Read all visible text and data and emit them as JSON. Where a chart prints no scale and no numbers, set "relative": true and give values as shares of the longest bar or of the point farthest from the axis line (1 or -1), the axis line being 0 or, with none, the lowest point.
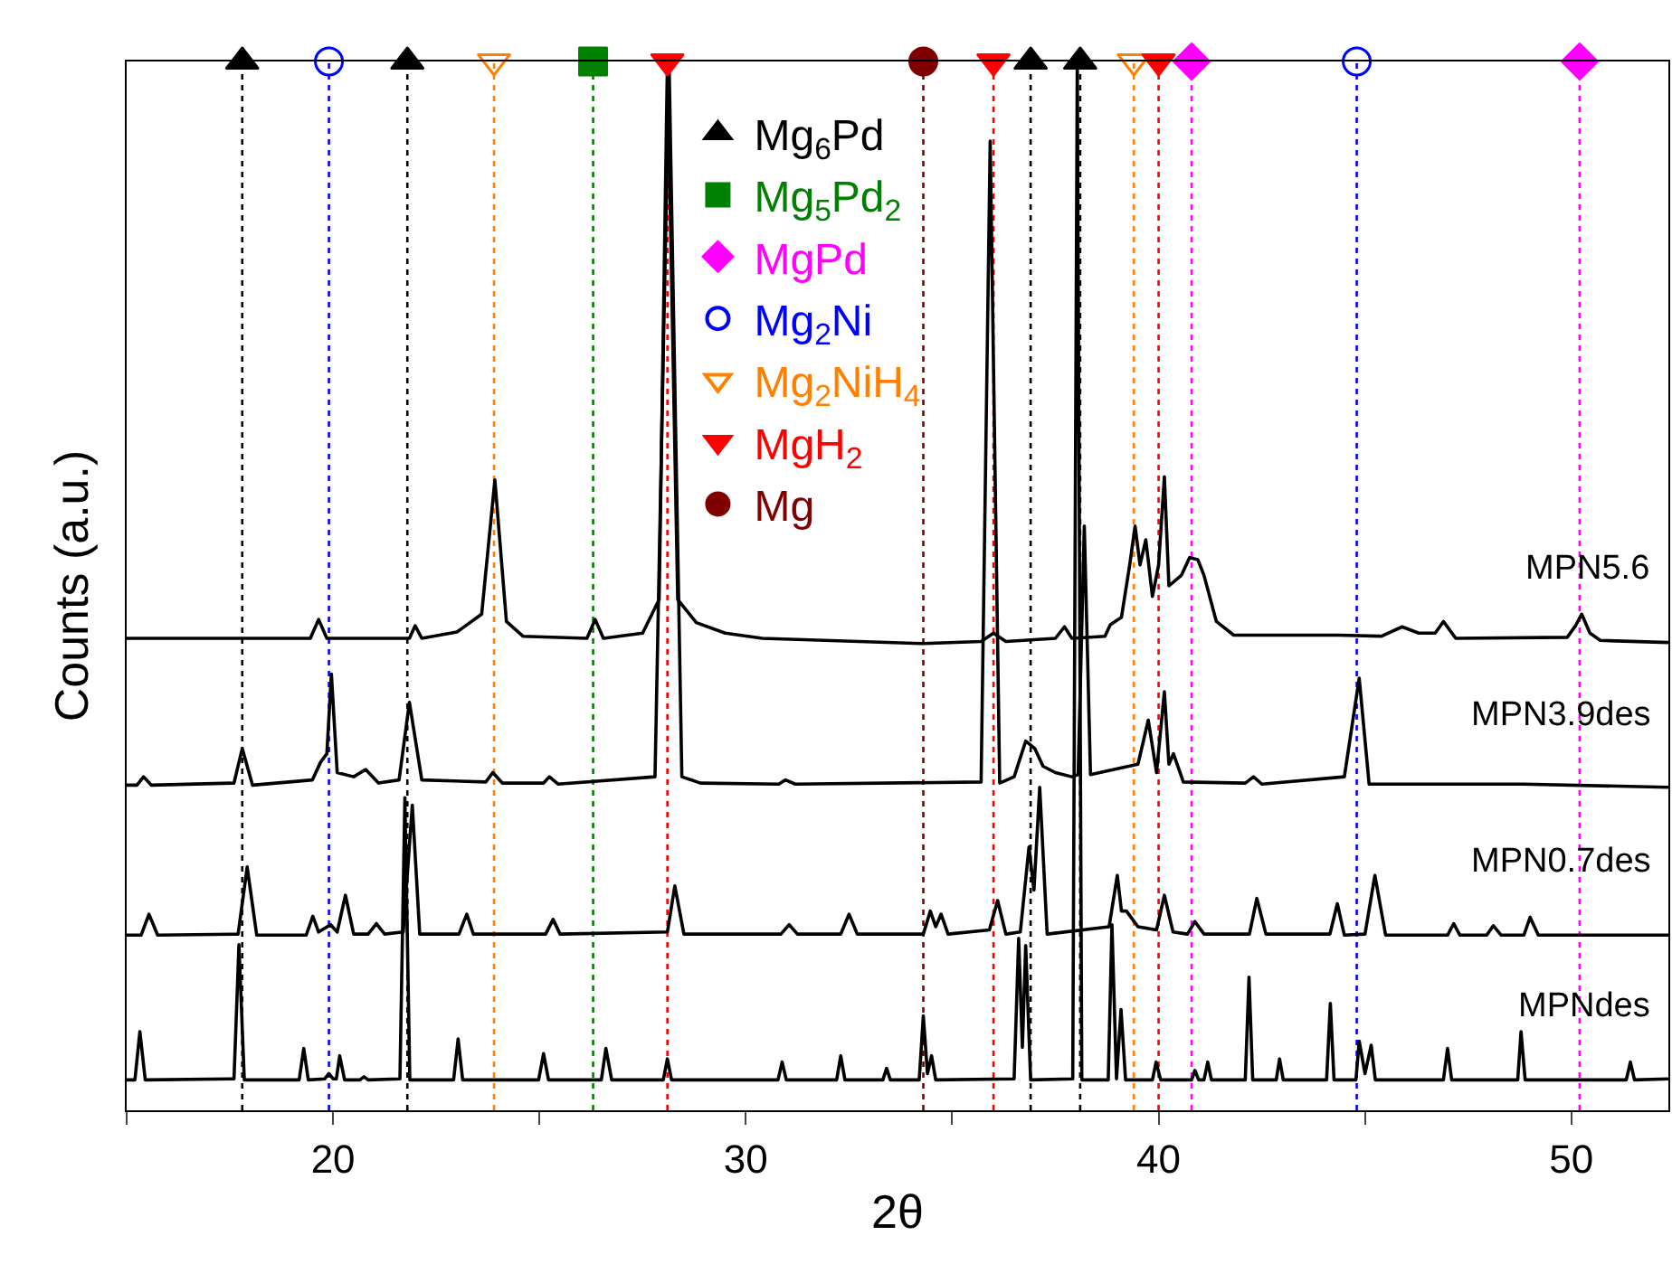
{
  "chart_data": {
    "type": "line",
    "relative": true,
    "xlabel": "2θ",
    "ylabel": "Counts (a.u.)",
    "xlim": [
      15,
      52.35
    ],
    "xticks": [
      {
        "value": 15,
        "label": null
      },
      20,
      {
        "value": 25,
        "label": null
      },
      30,
      {
        "value": 35,
        "label": null
      },
      40,
      {
        "value": 45,
        "label": null
      },
      50
    ],
    "tick_labels": "x",
    "grid": false,
    "legend": "top",
    "marker": "none",
    "line_style": "solid",
    "series": [
      {
        "name": "MPN5.6",
        "color": "#000000",
        "x": [
          15.0,
          19.45,
          19.65,
          19.85,
          21.85,
          21.99,
          22.15,
          23.0,
          23.6,
          23.92,
          24.2,
          24.6,
          26.15,
          26.35,
          26.55,
          27.5,
          27.9,
          28.1,
          28.35,
          28.8,
          29.5,
          30.4,
          34.3,
          35.7,
          36.0,
          36.3,
          37.5,
          37.72,
          37.9,
          38.7,
          38.83,
          39.1,
          39.3,
          39.43,
          39.55,
          39.69,
          39.85,
          40.0,
          40.14,
          40.25,
          40.55,
          40.75,
          40.95,
          41.1,
          41.4,
          41.82,
          44.38,
          45.4,
          45.9,
          46.3,
          46.7,
          46.9,
          47.2,
          49.9,
          50.1,
          50.25,
          50.45,
          50.7,
          52.35
        ],
        "values": [
          0.45,
          0.45,
          0.468,
          0.45,
          0.45,
          0.462,
          0.45,
          0.456,
          0.473,
          0.601,
          0.466,
          0.452,
          0.45,
          0.468,
          0.45,
          0.455,
          0.487,
          1.0,
          0.487,
          0.465,
          0.455,
          0.45,
          0.445,
          0.447,
          0.455,
          0.447,
          0.45,
          0.461,
          0.45,
          0.452,
          0.463,
          0.47,
          0.52,
          0.557,
          0.52,
          0.544,
          0.49,
          0.52,
          0.604,
          0.5,
          0.51,
          0.527,
          0.525,
          0.51,
          0.466,
          0.453,
          0.453,
          0.452,
          0.461,
          0.455,
          0.455,
          0.466,
          0.45,
          0.451,
          0.462,
          0.473,
          0.455,
          0.448,
          0.446
        ]
      },
      {
        "name": "MPN3.9des",
        "color": "#000000",
        "x": [
          15.0,
          15.25,
          15.41,
          15.6,
          17.6,
          17.8,
          18.05,
          19.5,
          19.7,
          19.85,
          19.96,
          20.1,
          20.5,
          20.79,
          21.1,
          21.6,
          21.85,
          22.15,
          23.7,
          23.87,
          24.1,
          25.1,
          25.24,
          25.45,
          27.8,
          28.14,
          28.45,
          28.9,
          30.8,
          30.96,
          31.2,
          35.7,
          35.92,
          36.15,
          36.5,
          36.78,
          37.0,
          37.2,
          37.5,
          37.9,
          38.05,
          38.2,
          38.35,
          38.92,
          39.5,
          39.75,
          39.95,
          40.14,
          40.25,
          40.36,
          40.6,
          42.1,
          42.3,
          42.5,
          44.5,
          44.86,
          45.1,
          48.83,
          52.35
        ],
        "values": [
          0.31,
          0.31,
          0.318,
          0.31,
          0.312,
          0.345,
          0.31,
          0.315,
          0.332,
          0.34,
          0.416,
          0.322,
          0.318,
          0.325,
          0.312,
          0.315,
          0.389,
          0.315,
          0.313,
          0.322,
          0.312,
          0.312,
          0.318,
          0.311,
          0.318,
          1.0,
          0.318,
          0.312,
          0.311,
          0.315,
          0.311,
          0.313,
          0.924,
          0.312,
          0.318,
          0.352,
          0.345,
          0.328,
          0.322,
          0.318,
          0.32,
          0.557,
          0.32,
          0.325,
          0.33,
          0.372,
          0.322,
          0.399,
          0.33,
          0.34,
          0.313,
          0.312,
          0.318,
          0.311,
          0.318,
          0.412,
          0.311,
          0.311,
          0.308
        ]
      },
      {
        "name": "MPN0.7des",
        "color": "#000000",
        "x": [
          15.0,
          15.35,
          15.54,
          15.75,
          17.7,
          17.92,
          18.15,
          19.35,
          19.51,
          19.65,
          19.94,
          20.1,
          20.3,
          20.5,
          20.85,
          21.05,
          21.25,
          21.7,
          21.92,
          22.1,
          23.05,
          23.24,
          23.4,
          25.15,
          25.33,
          25.5,
          28.1,
          28.28,
          28.5,
          30.85,
          31.05,
          31.25,
          32.3,
          32.5,
          32.7,
          34.3,
          34.47,
          34.6,
          34.73,
          34.9,
          35.9,
          36.1,
          36.3,
          36.65,
          36.86,
          36.98,
          37.12,
          37.3,
          38.8,
          39.0,
          39.1,
          39.22,
          39.5,
          39.95,
          40.14,
          40.35,
          40.7,
          40.88,
          41.1,
          42.2,
          42.38,
          42.6,
          44.15,
          44.33,
          44.5,
          45.0,
          45.24,
          45.5,
          47.0,
          47.15,
          47.3,
          47.95,
          48.11,
          48.3,
          48.85,
          49.0,
          49.2,
          52.35
        ],
        "values": [
          0.167,
          0.167,
          0.187,
          0.167,
          0.168,
          0.232,
          0.167,
          0.167,
          0.185,
          0.17,
          0.177,
          0.17,
          0.205,
          0.168,
          0.168,
          0.178,
          0.168,
          0.17,
          0.291,
          0.168,
          0.168,
          0.187,
          0.168,
          0.168,
          0.182,
          0.168,
          0.17,
          0.214,
          0.168,
          0.168,
          0.177,
          0.168,
          0.168,
          0.187,
          0.168,
          0.168,
          0.19,
          0.175,
          0.187,
          0.168,
          0.172,
          0.2,
          0.168,
          0.17,
          0.251,
          0.21,
          0.308,
          0.168,
          0.175,
          0.224,
          0.19,
          0.19,
          0.175,
          0.172,
          0.205,
          0.17,
          0.168,
          0.18,
          0.168,
          0.168,
          0.202,
          0.168,
          0.168,
          0.197,
          0.167,
          0.168,
          0.224,
          0.167,
          0.167,
          0.178,
          0.167,
          0.167,
          0.176,
          0.167,
          0.167,
          0.184,
          0.167,
          0.167
        ]
      },
      {
        "name": "MPNdes",
        "color": "#000000",
        "x": [
          15.0,
          15.2,
          15.32,
          15.45,
          17.6,
          17.72,
          17.85,
          19.18,
          19.29,
          19.4,
          19.8,
          19.9,
          20.0,
          20.08,
          20.16,
          20.28,
          20.65,
          20.75,
          20.85,
          21.62,
          21.74,
          21.86,
          22.92,
          23.03,
          23.14,
          24.98,
          25.1,
          25.22,
          26.5,
          26.61,
          26.75,
          28.0,
          28.1,
          28.2,
          30.78,
          30.88,
          30.98,
          32.2,
          32.3,
          32.4,
          33.32,
          33.41,
          33.5,
          34.2,
          34.3,
          34.4,
          34.5,
          34.6,
          36.5,
          36.61,
          36.7,
          36.78,
          36.9,
          37.92,
          38.03,
          38.14,
          38.78,
          38.87,
          38.98,
          39.09,
          39.2,
          39.85,
          39.94,
          40.05,
          40.8,
          40.88,
          40.97,
          41.1,
          41.19,
          41.28,
          42.1,
          42.19,
          42.28,
          42.85,
          42.93,
          43.02,
          44.07,
          44.16,
          44.25,
          44.78,
          44.86,
          45.0,
          45.15,
          45.25,
          46.9,
          47.0,
          47.1,
          48.7,
          48.78,
          48.88,
          51.33,
          51.43,
          51.53,
          52.35
        ],
        "values": [
          0.029,
          0.029,
          0.075,
          0.029,
          0.03,
          0.158,
          0.029,
          0.029,
          0.059,
          0.029,
          0.03,
          0.035,
          0.03,
          0.03,
          0.052,
          0.029,
          0.029,
          0.032,
          0.029,
          0.03,
          0.298,
          0.029,
          0.029,
          0.068,
          0.029,
          0.029,
          0.054,
          0.029,
          0.029,
          0.059,
          0.029,
          0.029,
          0.049,
          0.029,
          0.029,
          0.046,
          0.029,
          0.029,
          0.052,
          0.029,
          0.029,
          0.04,
          0.029,
          0.029,
          0.09,
          0.035,
          0.052,
          0.029,
          0.03,
          0.164,
          0.06,
          0.157,
          0.029,
          0.03,
          1.0,
          0.029,
          0.029,
          0.177,
          0.03,
          0.096,
          0.029,
          0.029,
          0.046,
          0.029,
          0.029,
          0.038,
          0.029,
          0.029,
          0.046,
          0.029,
          0.029,
          0.127,
          0.029,
          0.029,
          0.049,
          0.029,
          0.029,
          0.102,
          0.029,
          0.029,
          0.066,
          0.035,
          0.062,
          0.029,
          0.029,
          0.059,
          0.029,
          0.029,
          0.075,
          0.029,
          0.029,
          0.046,
          0.029,
          0.03
        ]
      },
      {
        "name": "Mg$_{6}$Pd",
        "color": "#000000",
        "type": "scatter",
        "marker": "triangle",
        "x": [
          17.8,
          21.8,
          36.9,
          38.1
        ],
        "values": [
          1,
          1,
          1,
          1
        ]
      },
      {
        "name": "Mg$_{5}$Pd$_{2}$",
        "color": "#008000",
        "type": "scatter",
        "marker": "square",
        "x": [
          26.3
        ],
        "values": [
          1
        ]
      },
      {
        "name": "MgPd",
        "color": "#ff00ff",
        "type": "scatter",
        "marker": "diamond",
        "x": [
          40.8,
          50.2
        ],
        "values": [
          1,
          1
        ]
      },
      {
        "name": "Mg$_{2}$Ni",
        "color": "#0000ff",
        "type": "scatter",
        "marker": "circle-open",
        "x": [
          19.9,
          44.8
        ],
        "values": [
          1,
          1
        ]
      },
      {
        "name": "Mg$_{2}$NiH$_{4}$",
        "color": "#ff8000",
        "type": "scatter",
        "marker": "triangle-down-open",
        "x": [
          23.9,
          39.4
        ],
        "values": [
          1,
          1
        ]
      },
      {
        "name": "MgH$_{2}$",
        "color": "#ff0000",
        "type": "scatter",
        "marker": "triangle-down",
        "x": [
          28.1,
          36.0,
          40.0
        ],
        "values": [
          1,
          1,
          1
        ]
      },
      {
        "name": "Mg",
        "color": "#800000",
        "type": "scatter",
        "marker": "circle",
        "x": [
          34.3
        ],
        "values": [
          1
        ]
      }
    ],
    "ref_lines": [
      {
        "axis": "x",
        "value": 17.8,
        "color": "#000000",
        "line_style": "dotted"
      },
      {
        "axis": "x",
        "value": 21.8,
        "color": "#000000",
        "line_style": "dotted"
      },
      {
        "axis": "x",
        "value": 36.9,
        "color": "#000000",
        "line_style": "dotted"
      },
      {
        "axis": "x",
        "value": 38.1,
        "color": "#000000",
        "line_style": "dotted"
      },
      {
        "axis": "x",
        "value": 26.3,
        "color": "#008000",
        "line_style": "dotted"
      },
      {
        "axis": "x",
        "value": 40.8,
        "color": "#ff00ff",
        "line_style": "dotted"
      },
      {
        "axis": "x",
        "value": 50.2,
        "color": "#ff00ff",
        "line_style": "dotted"
      },
      {
        "axis": "x",
        "value": 19.9,
        "color": "#0000ff",
        "line_style": "dotted"
      },
      {
        "axis": "x",
        "value": 44.8,
        "color": "#0000ff",
        "line_style": "dotted"
      },
      {
        "axis": "x",
        "value": 23.9,
        "color": "#ff8000",
        "line_style": "dotted"
      },
      {
        "axis": "x",
        "value": 39.4,
        "color": "#ff8000",
        "line_style": "dotted"
      },
      {
        "axis": "x",
        "value": 28.1,
        "color": "#ff0000",
        "line_style": "dotted"
      },
      {
        "axis": "x",
        "value": 36.0,
        "color": "#ff0000",
        "line_style": "dotted"
      },
      {
        "axis": "x",
        "value": 40.0,
        "color": "#ff0000",
        "line_style": "dotted"
      },
      {
        "axis": "x",
        "value": 34.3,
        "color": "#800000",
        "line_style": "dotted"
      }
    ]
  }
}
